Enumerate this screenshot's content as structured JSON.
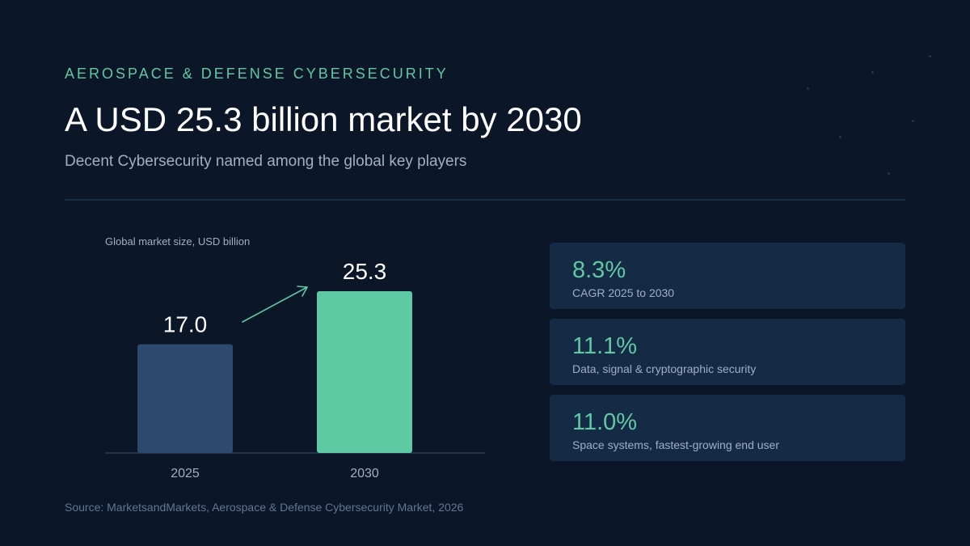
{
  "header": {
    "eyebrow": "AEROSPACE & DEFENSE CYBERSECURITY",
    "title": "A USD 25.3 billion market by 2030",
    "subtitle": "Decent Cybersecurity named among the global key players"
  },
  "chart_data": {
    "type": "bar",
    "title": "Global market size, USD billion",
    "categories": [
      "2025",
      "2030"
    ],
    "values": [
      17.0,
      25.3
    ],
    "value_labels": [
      "17.0",
      "25.3"
    ],
    "bar_colors": [
      "#2d4a6e",
      "#5fc9a4"
    ],
    "ylim": [
      0,
      25.3
    ],
    "grid": false,
    "annotation": "growth-arrow"
  },
  "stats": [
    {
      "value": "8.3%",
      "label": "CAGR 2025 to 2030"
    },
    {
      "value": "11.1%",
      "label": "Data, signal & cryptographic security"
    },
    {
      "value": "11.0%",
      "label": "Space systems, fastest-growing end user"
    }
  ],
  "footer": {
    "source": "Source: MarketsandMarkets, Aerospace & Defense Cybersecurity Market, 2026"
  },
  "colors": {
    "background": "#0b1628",
    "accent": "#5fc9a4",
    "card": "#142a45",
    "muted_text": "#9fb0c5"
  }
}
